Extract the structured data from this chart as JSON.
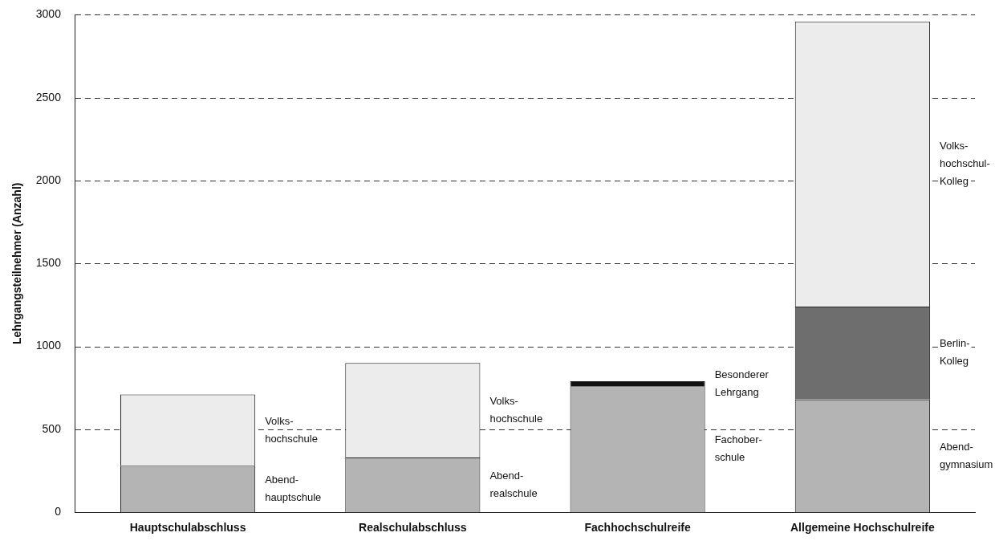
{
  "chart_data": {
    "type": "bar",
    "stacked": true,
    "ylabel": "Lehrgangsteilnehmer (Anzahl)",
    "categories": [
      "Hauptschulabschluss",
      "Realschulabschluss",
      "Fachhochschulreife",
      "Allgemeine Hochschulreife"
    ],
    "series": [
      {
        "name": "Abend-\nhauptschule",
        "color": "#b4b4b4",
        "values": [
          280,
          null,
          null,
          null
        ]
      },
      {
        "name": "Abend-\nrealschule",
        "color": "#b4b4b4",
        "values": [
          null,
          330,
          null,
          null
        ]
      },
      {
        "name": "Fachober-\nschule",
        "color": "#b4b4b4",
        "values": [
          null,
          null,
          760,
          null
        ]
      },
      {
        "name": "Abend-\ngymnasium",
        "color": "#b4b4b4",
        "values": [
          null,
          null,
          null,
          680
        ]
      },
      {
        "name": "Besonderer\nLehrgang",
        "color": "#111111",
        "values": [
          null,
          null,
          30,
          null
        ]
      },
      {
        "name": "Berlin-\nKolleg",
        "color": "#6e6e6e",
        "values": [
          null,
          null,
          null,
          560
        ]
      },
      {
        "name": "Volks-\nhochschule",
        "color": "#ececec",
        "values": [
          430,
          570,
          null,
          null
        ]
      },
      {
        "name": "Volks-\nhochschul-\nKolleg",
        "color": "#ececec",
        "values": [
          null,
          null,
          null,
          1720
        ]
      }
    ],
    "ylim": [
      0,
      3000
    ],
    "yticks": [
      0,
      500,
      1000,
      1500,
      2000,
      2500,
      3000
    ],
    "grid": "y"
  }
}
